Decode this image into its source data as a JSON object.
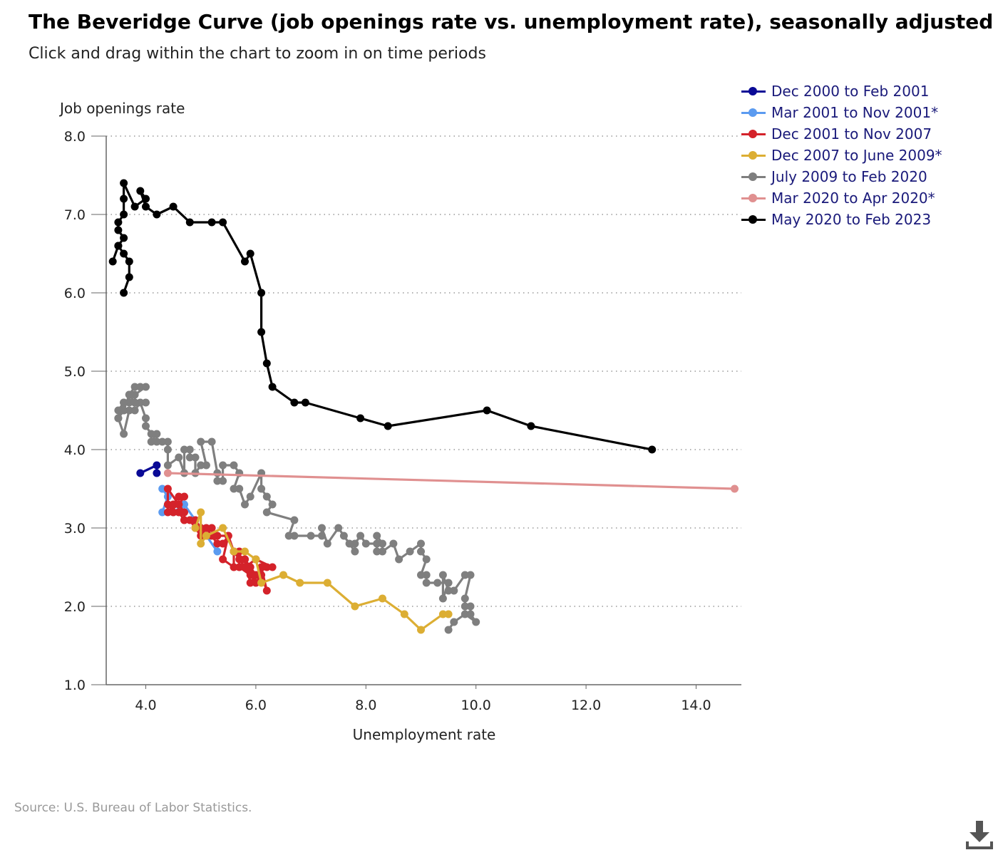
{
  "header": {
    "title": "The Beveridge Curve (job openings rate vs. unemployment rate), seasonally adjusted",
    "subtitle": "Click and drag within the chart to zoom in on time periods"
  },
  "source": "Source: U.S. Bureau of Labor Statistics.",
  "download_icon": "download-icon",
  "chart_data": {
    "type": "line",
    "ylabel": "Job openings rate",
    "xlabel": "Unemployment rate",
    "xlim": [
      3.0,
      15.0
    ],
    "ylim": [
      1.0,
      8.0
    ],
    "x_ticks": [
      "4.0",
      "6.0",
      "8.0",
      "10.0",
      "12.0",
      "14.0"
    ],
    "y_ticks": [
      "1.0",
      "2.0",
      "3.0",
      "4.0",
      "5.0",
      "6.0",
      "7.0",
      "8.0"
    ],
    "grid": "horizontal dotted",
    "legend_position": "top-right",
    "series": [
      {
        "name": "Dec 2000 to Feb 2001",
        "color": "#0a0a96",
        "points": [
          [
            3.9,
            3.7
          ],
          [
            4.2,
            3.8
          ],
          [
            4.2,
            3.7
          ]
        ]
      },
      {
        "name": "Mar 2001 to Nov 2001*",
        "color": "#5b9bf0",
        "points": [
          [
            4.3,
            3.5
          ],
          [
            4.4,
            3.4
          ],
          [
            4.3,
            3.2
          ],
          [
            4.5,
            3.2
          ],
          [
            4.7,
            3.3
          ],
          [
            4.9,
            3.1
          ],
          [
            5.0,
            3.0
          ],
          [
            5.3,
            2.7
          ]
        ]
      },
      {
        "name": "Dec 2001 to Nov 2007",
        "color": "#d4222a",
        "points": [
          [
            5.7,
            2.7
          ],
          [
            5.7,
            2.5
          ],
          [
            5.9,
            2.4
          ],
          [
            5.8,
            2.6
          ],
          [
            5.9,
            2.3
          ],
          [
            6.0,
            2.4
          ],
          [
            5.9,
            2.5
          ],
          [
            6.0,
            2.3
          ],
          [
            6.1,
            2.4
          ],
          [
            6.2,
            2.2
          ],
          [
            6.1,
            2.5
          ],
          [
            6.3,
            2.5
          ],
          [
            6.0,
            2.6
          ],
          [
            5.8,
            2.5
          ],
          [
            5.7,
            2.6
          ],
          [
            5.6,
            2.7
          ],
          [
            5.6,
            2.5
          ],
          [
            5.4,
            2.6
          ],
          [
            5.5,
            2.9
          ],
          [
            5.4,
            2.8
          ],
          [
            5.3,
            2.8
          ],
          [
            5.2,
            2.9
          ],
          [
            5.1,
            3.0
          ],
          [
            5.0,
            2.9
          ],
          [
            4.9,
            3.0
          ],
          [
            4.8,
            3.1
          ],
          [
            4.7,
            3.1
          ],
          [
            4.6,
            3.2
          ],
          [
            4.5,
            3.2
          ],
          [
            4.4,
            3.3
          ],
          [
            4.5,
            3.3
          ],
          [
            4.6,
            3.4
          ],
          [
            4.7,
            3.4
          ],
          [
            4.6,
            3.3
          ],
          [
            4.4,
            3.5
          ],
          [
            4.4,
            3.2
          ],
          [
            4.6,
            3.3
          ],
          [
            4.7,
            3.2
          ],
          [
            4.7,
            3.1
          ],
          [
            4.9,
            3.1
          ],
          [
            5.0,
            3.0
          ],
          [
            5.1,
            2.9
          ],
          [
            5.2,
            3.0
          ],
          [
            5.3,
            2.9
          ],
          [
            5.5,
            2.9
          ],
          [
            5.6,
            2.7
          ],
          [
            5.8,
            2.6
          ],
          [
            6.0,
            2.4
          ],
          [
            6.2,
            2.5
          ]
        ]
      },
      {
        "name": "Dec 2007 to June 2009*",
        "color": "#dcae33",
        "points": [
          [
            4.9,
            3.0
          ],
          [
            5.0,
            3.2
          ],
          [
            5.0,
            2.8
          ],
          [
            5.1,
            2.9
          ],
          [
            5.4,
            3.0
          ],
          [
            5.6,
            2.7
          ],
          [
            5.8,
            2.7
          ],
          [
            6.0,
            2.6
          ],
          [
            6.1,
            2.3
          ],
          [
            6.5,
            2.4
          ],
          [
            6.8,
            2.3
          ],
          [
            7.3,
            2.3
          ],
          [
            7.8,
            2.0
          ],
          [
            8.3,
            2.1
          ],
          [
            8.7,
            1.9
          ],
          [
            9.0,
            1.7
          ],
          [
            9.4,
            1.9
          ],
          [
            9.5,
            1.9
          ]
        ]
      },
      {
        "name": "July 2009 to Feb 2020",
        "color": "#7f7f7f",
        "points": [
          [
            9.5,
            1.7
          ],
          [
            9.6,
            1.8
          ],
          [
            9.8,
            1.9
          ],
          [
            10.0,
            1.8
          ],
          [
            9.9,
            1.9
          ],
          [
            9.9,
            2.0
          ],
          [
            9.8,
            2.0
          ],
          [
            9.8,
            2.1
          ],
          [
            9.9,
            2.4
          ],
          [
            9.8,
            2.4
          ],
          [
            9.6,
            2.2
          ],
          [
            9.5,
            2.2
          ],
          [
            9.4,
            2.4
          ],
          [
            9.4,
            2.1
          ],
          [
            9.5,
            2.3
          ],
          [
            9.3,
            2.3
          ],
          [
            9.1,
            2.3
          ],
          [
            9.1,
            2.4
          ],
          [
            9.0,
            2.4
          ],
          [
            9.1,
            2.6
          ],
          [
            9.0,
            2.7
          ],
          [
            9.0,
            2.8
          ],
          [
            8.8,
            2.7
          ],
          [
            8.6,
            2.6
          ],
          [
            8.5,
            2.8
          ],
          [
            8.3,
            2.7
          ],
          [
            8.3,
            2.8
          ],
          [
            8.2,
            2.9
          ],
          [
            8.2,
            2.7
          ],
          [
            8.2,
            2.8
          ],
          [
            8.0,
            2.8
          ],
          [
            7.9,
            2.9
          ],
          [
            7.8,
            2.8
          ],
          [
            7.8,
            2.7
          ],
          [
            7.7,
            2.8
          ],
          [
            7.6,
            2.9
          ],
          [
            7.5,
            3.0
          ],
          [
            7.3,
            2.8
          ],
          [
            7.2,
            3.0
          ],
          [
            7.2,
            2.9
          ],
          [
            7.0,
            2.9
          ],
          [
            6.7,
            2.9
          ],
          [
            6.6,
            2.9
          ],
          [
            6.7,
            3.1
          ],
          [
            6.2,
            3.2
          ],
          [
            6.3,
            3.3
          ],
          [
            6.2,
            3.4
          ],
          [
            6.1,
            3.5
          ],
          [
            6.1,
            3.7
          ],
          [
            5.9,
            3.4
          ],
          [
            5.8,
            3.3
          ],
          [
            5.7,
            3.5
          ],
          [
            5.6,
            3.5
          ],
          [
            5.7,
            3.7
          ],
          [
            5.6,
            3.8
          ],
          [
            5.4,
            3.8
          ],
          [
            5.4,
            3.6
          ],
          [
            5.3,
            3.6
          ],
          [
            5.3,
            3.7
          ],
          [
            5.2,
            4.1
          ],
          [
            5.0,
            4.1
          ],
          [
            5.1,
            3.8
          ],
          [
            5.0,
            3.8
          ],
          [
            4.9,
            3.7
          ],
          [
            4.9,
            3.9
          ],
          [
            4.8,
            3.9
          ],
          [
            4.8,
            4.0
          ],
          [
            4.7,
            4.0
          ],
          [
            4.7,
            3.7
          ],
          [
            4.6,
            3.9
          ],
          [
            4.4,
            3.8
          ],
          [
            4.4,
            4.0
          ],
          [
            4.4,
            4.1
          ],
          [
            4.3,
            4.1
          ],
          [
            4.2,
            4.1
          ],
          [
            4.2,
            4.2
          ],
          [
            4.1,
            4.1
          ],
          [
            4.1,
            4.2
          ],
          [
            4.0,
            4.3
          ],
          [
            4.0,
            4.4
          ],
          [
            3.9,
            4.6
          ],
          [
            3.8,
            4.5
          ],
          [
            3.7,
            4.5
          ],
          [
            3.6,
            4.2
          ],
          [
            3.5,
            4.4
          ],
          [
            3.6,
            4.5
          ],
          [
            3.5,
            4.5
          ],
          [
            3.6,
            4.6
          ],
          [
            3.7,
            4.6
          ],
          [
            3.7,
            4.7
          ],
          [
            3.8,
            4.8
          ],
          [
            3.9,
            4.8
          ],
          [
            4.0,
            4.8
          ],
          [
            3.8,
            4.7
          ],
          [
            3.8,
            4.6
          ],
          [
            3.7,
            4.7
          ],
          [
            3.6,
            4.5
          ],
          [
            3.5,
            4.4
          ],
          [
            3.6,
            4.6
          ],
          [
            3.8,
            4.6
          ],
          [
            4.0,
            4.6
          ]
        ]
      },
      {
        "name": "Mar 2020 to Apr 2020*",
        "color": "#e09090",
        "points": [
          [
            4.4,
            3.7
          ],
          [
            14.7,
            3.5
          ]
        ]
      },
      {
        "name": "May 2020 to Feb 2023",
        "color": "#000000",
        "points": [
          [
            13.2,
            4.0
          ],
          [
            11.0,
            4.3
          ],
          [
            10.2,
            4.5
          ],
          [
            8.4,
            4.3
          ],
          [
            7.9,
            4.4
          ],
          [
            6.9,
            4.6
          ],
          [
            6.7,
            4.6
          ],
          [
            6.3,
            4.8
          ],
          [
            6.2,
            5.1
          ],
          [
            6.1,
            5.5
          ],
          [
            6.1,
            6.0
          ],
          [
            5.9,
            6.5
          ],
          [
            5.8,
            6.4
          ],
          [
            5.4,
            6.9
          ],
          [
            5.2,
            6.9
          ],
          [
            4.8,
            6.9
          ],
          [
            4.5,
            7.1
          ],
          [
            4.2,
            7.0
          ],
          [
            4.0,
            7.1
          ],
          [
            3.9,
            7.3
          ],
          [
            4.0,
            7.2
          ],
          [
            3.8,
            7.1
          ],
          [
            3.6,
            7.4
          ],
          [
            3.6,
            7.2
          ],
          [
            3.6,
            7.0
          ],
          [
            3.5,
            6.9
          ],
          [
            3.5,
            6.8
          ],
          [
            3.6,
            6.7
          ],
          [
            3.5,
            6.6
          ],
          [
            3.4,
            6.4
          ],
          [
            3.5,
            6.6
          ],
          [
            3.6,
            6.5
          ],
          [
            3.7,
            6.4
          ],
          [
            3.7,
            6.2
          ],
          [
            3.6,
            6.0
          ]
        ]
      }
    ]
  }
}
